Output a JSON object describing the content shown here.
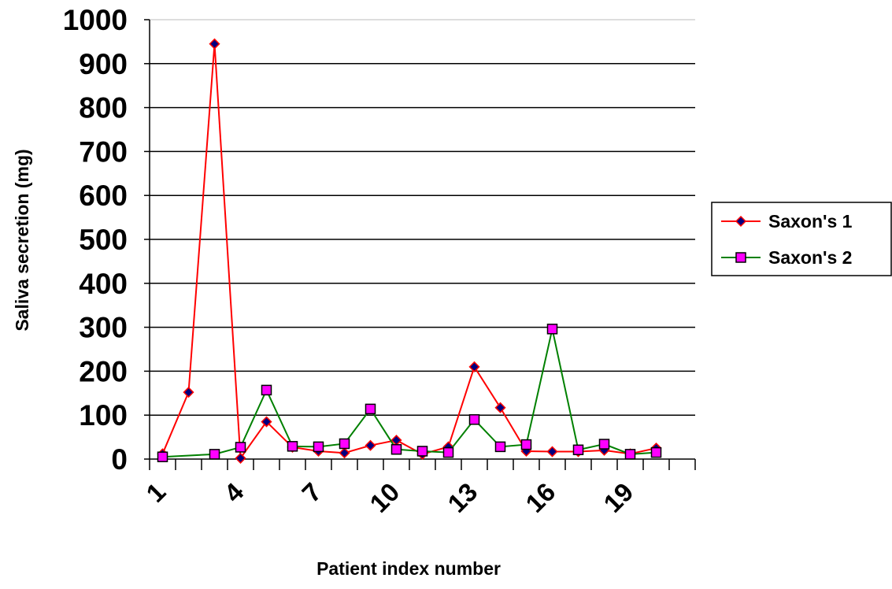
{
  "chart_data": {
    "type": "line",
    "xlabel": "Patient index number",
    "ylabel": "Saliva secretion (mg)",
    "ylim": [
      0,
      1000
    ],
    "yticks": [
      "0",
      "100",
      "200",
      "300",
      "400",
      "500",
      "600",
      "700",
      "800",
      "900",
      "1000"
    ],
    "x": [
      1,
      2,
      3,
      4,
      5,
      6,
      7,
      8,
      9,
      10,
      11,
      12,
      13,
      14,
      15,
      16,
      17,
      18,
      19,
      20,
      21
    ],
    "xtick_labels": [
      "1",
      "4",
      "7",
      "10",
      "13",
      "16",
      "19"
    ],
    "grid": true,
    "legend_position": "right",
    "series": [
      {
        "name": "Saxon's 1",
        "color": "#ff0000",
        "marker": "diamond",
        "marker_fill": "#000080",
        "values": [
          12,
          152,
          945,
          2,
          85,
          27,
          18,
          14,
          31,
          43,
          11,
          28,
          210,
          117,
          18,
          17,
          17,
          20,
          12,
          25,
          null
        ]
      },
      {
        "name": "Saxon's 2",
        "color": "#008000",
        "marker": "square",
        "marker_fill": "#ff00ff",
        "values": [
          5,
          null,
          11,
          27,
          157,
          29,
          28,
          35,
          114,
          22,
          18,
          15,
          90,
          28,
          33,
          296,
          21,
          34,
          11,
          15,
          null
        ]
      }
    ]
  }
}
